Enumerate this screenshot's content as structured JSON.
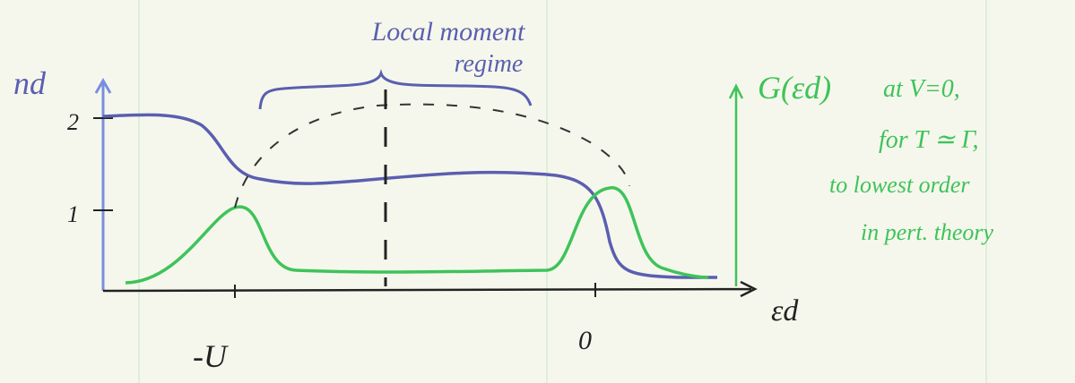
{
  "annotation": {
    "lines": [
      "Local moment",
      "regime"
    ]
  },
  "left_axis": {
    "label": "nd",
    "ticks": [
      "2",
      "1"
    ]
  },
  "bottom_axis": {
    "label": "εd",
    "ticks": [
      "-U",
      "0"
    ]
  },
  "right_axis": {
    "label": "G(εd)",
    "note": [
      "at V=0,",
      "for T ≃ Γ,",
      "to lowest order",
      "in pert. theory"
    ]
  }
}
